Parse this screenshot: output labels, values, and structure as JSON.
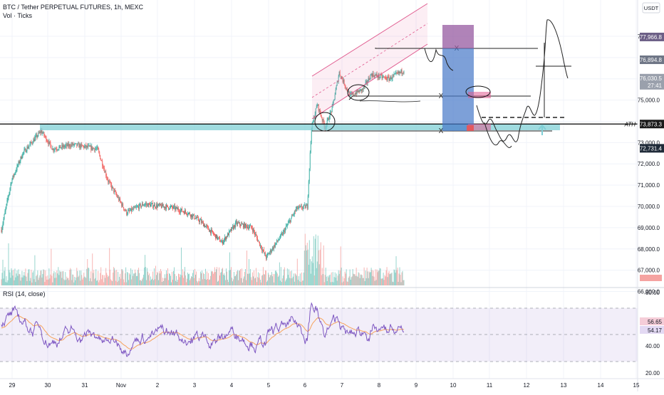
{
  "header": {
    "title": "BTC / Tether PERPETUAL FUTURES, 1h, MEXC",
    "volume_label": "Vol · Ticks",
    "currency_button": "USDT"
  },
  "colors": {
    "up": "#26a69a",
    "down": "#ef5350",
    "vol_up": "#7fcbc2",
    "vol_down": "#f5a3a1",
    "rsi": "#7e57c2",
    "rsi_ma": "#f7a35c",
    "channel": "#e05b8f",
    "support_band": "#7fcfd6",
    "grid": "#f0f3fa",
    "axis_text": "#131722"
  },
  "chart_data": {
    "type": "candlestick",
    "price_axis": {
      "ticks": [
        "78,000.0",
        "75,000.0",
        "73,000.0",
        "72,000.0",
        "71,000.0",
        "70,000.0",
        "69,000.0",
        "68,000.0",
        "67,000.0",
        "66,000.0"
      ]
    },
    "price_labels": [
      {
        "value": 77966.8,
        "text": "77,966.8",
        "bg": "#6c5f86",
        "fg": "#ffffff"
      },
      {
        "value": 76894.8,
        "text": "76,894.8",
        "bg": "#6f7686",
        "fg": "#ffffff"
      },
      {
        "value": 76030.5,
        "text": "76,030.5",
        "sub": "27:41",
        "bg": "#9aa0ac",
        "fg": "#ffffff"
      },
      {
        "value": 73873.3,
        "text": "73,873.3",
        "bg": "#1a1a1a",
        "fg": "#ffffff"
      },
      {
        "value": 72731.4,
        "text": "72,731.4",
        "bg": "#1f2a38",
        "fg": "#ffffff"
      }
    ],
    "ath_label": "ATH",
    "x_axis": {
      "labels": [
        "29",
        "30",
        "31",
        "Nov",
        "2",
        "3",
        "4",
        "5",
        "6",
        "7",
        "8",
        "9",
        "10",
        "11",
        "12",
        "13",
        "14",
        "15"
      ],
      "day_start_index": 0
    },
    "candles_summary": {
      "start_price": 68900,
      "key_points": [
        {
          "bar": 0,
          "price": 68900
        },
        {
          "bar": 14,
          "price": 71200
        },
        {
          "bar": 30,
          "price": 72500
        },
        {
          "bar": 56,
          "price": 73550
        },
        {
          "bar": 72,
          "price": 72700
        },
        {
          "bar": 100,
          "price": 72900
        },
        {
          "bar": 135,
          "price": 72700
        },
        {
          "bar": 150,
          "price": 71200
        },
        {
          "bar": 176,
          "price": 69700
        },
        {
          "bar": 200,
          "price": 70100
        },
        {
          "bar": 240,
          "price": 69950
        },
        {
          "bar": 262,
          "price": 69700
        },
        {
          "bar": 280,
          "price": 69300
        },
        {
          "bar": 310,
          "price": 68300
        },
        {
          "bar": 330,
          "price": 69200
        },
        {
          "bar": 352,
          "price": 69000
        },
        {
          "bar": 372,
          "price": 67600
        },
        {
          "bar": 395,
          "price": 68700
        },
        {
          "bar": 415,
          "price": 69900
        },
        {
          "bar": 430,
          "price": 70000
        },
        {
          "bar": 436,
          "price": 73700
        },
        {
          "bar": 444,
          "price": 74800
        },
        {
          "bar": 455,
          "price": 73700
        },
        {
          "bar": 465,
          "price": 74600
        },
        {
          "bar": 475,
          "price": 76300
        },
        {
          "bar": 490,
          "price": 75200
        },
        {
          "bar": 508,
          "price": 75500
        },
        {
          "bar": 520,
          "price": 76200
        },
        {
          "bar": 545,
          "price": 76000
        },
        {
          "bar": 566,
          "price": 76400
        }
      ]
    },
    "rsi": {
      "label": "RSI (14, close)",
      "axis_ticks": [
        "80.00",
        "40.00",
        "20.00"
      ],
      "value": "56.65",
      "ma_value": "54.17",
      "bands": [
        70,
        50,
        30
      ]
    }
  }
}
